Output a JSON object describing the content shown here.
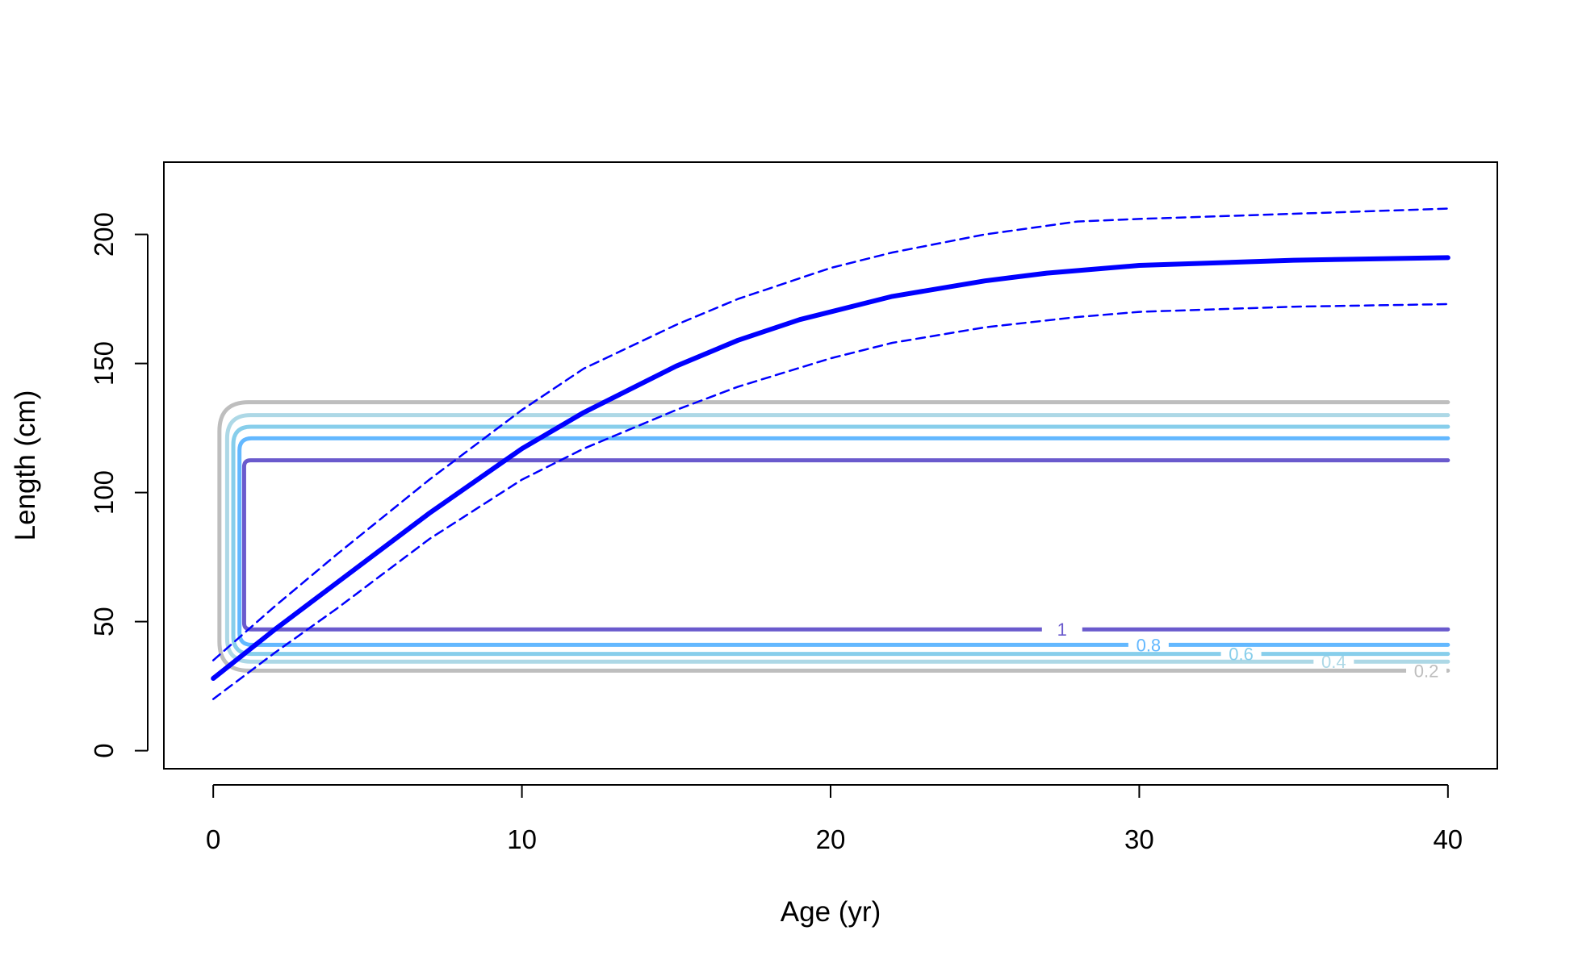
{
  "chart_data": {
    "type": "line",
    "title": "",
    "xlabel": "Age (yr)",
    "ylabel": "Length (cm)",
    "xlim": [
      -1.6,
      41.6
    ],
    "ylim": [
      -7,
      228
    ],
    "xticks": [
      0,
      10,
      20,
      30,
      40
    ],
    "yticks": [
      0,
      50,
      100,
      150,
      200
    ],
    "xtick_labels": [
      "0",
      "10",
      "20",
      "30",
      "40"
    ],
    "ytick_labels": [
      "0",
      "50",
      "100",
      "150",
      "200"
    ],
    "grid": false,
    "legend": "none",
    "series": [
      {
        "style": "solid-thick",
        "color": "#0000ff",
        "x": [
          0,
          2,
          4,
          7,
          10,
          12,
          15,
          17,
          19,
          22,
          25,
          27,
          30,
          35,
          40
        ],
        "y": [
          28,
          47,
          65,
          92,
          117,
          131,
          149,
          159,
          167,
          176,
          182,
          185,
          188,
          190,
          191
        ]
      },
      {
        "style": "dashed",
        "color": "#0000ff",
        "x": [
          0,
          2,
          4,
          7,
          10,
          12,
          15,
          17,
          20,
          22,
          25,
          28,
          30,
          35,
          40
        ],
        "y": [
          35,
          56,
          76,
          105,
          132,
          148,
          165,
          175,
          187,
          193,
          200,
          205,
          206,
          208,
          210
        ]
      },
      {
        "style": "dashed",
        "color": "#0000ff",
        "x": [
          0,
          2,
          4,
          7,
          10,
          12,
          15,
          17,
          20,
          22,
          25,
          28,
          30,
          35,
          40
        ],
        "y": [
          20,
          38,
          55,
          82,
          105,
          117,
          132,
          141,
          152,
          158,
          164,
          168,
          170,
          172,
          173
        ]
      }
    ],
    "contours": [
      {
        "label": "0.2",
        "level": 0.2,
        "color": "#bebebe",
        "x_left": 0.2,
        "x_right": 40,
        "y_bottom": 31,
        "y_top": 135,
        "label_x": 39.3
      },
      {
        "label": "0.4",
        "level": 0.4,
        "color": "#add8e6",
        "x_left": 0.45,
        "x_right": 40,
        "y_bottom": 34.5,
        "y_top": 130,
        "label_x": 36.3
      },
      {
        "label": "0.6",
        "level": 0.6,
        "color": "#87ceeb",
        "x_left": 0.65,
        "x_right": 40,
        "y_bottom": 37.5,
        "y_top": 125.5,
        "label_x": 33.3
      },
      {
        "label": "0.8",
        "level": 0.8,
        "color": "#63b8ff",
        "x_left": 0.85,
        "x_right": 40,
        "y_bottom": 41,
        "y_top": 121,
        "label_x": 30.3
      },
      {
        "label": "1",
        "level": 1,
        "color": "#6a5acd",
        "x_left": 1,
        "x_right": 40,
        "y_bottom": 47,
        "y_top": 112.5,
        "label_x": 27.5
      }
    ]
  }
}
